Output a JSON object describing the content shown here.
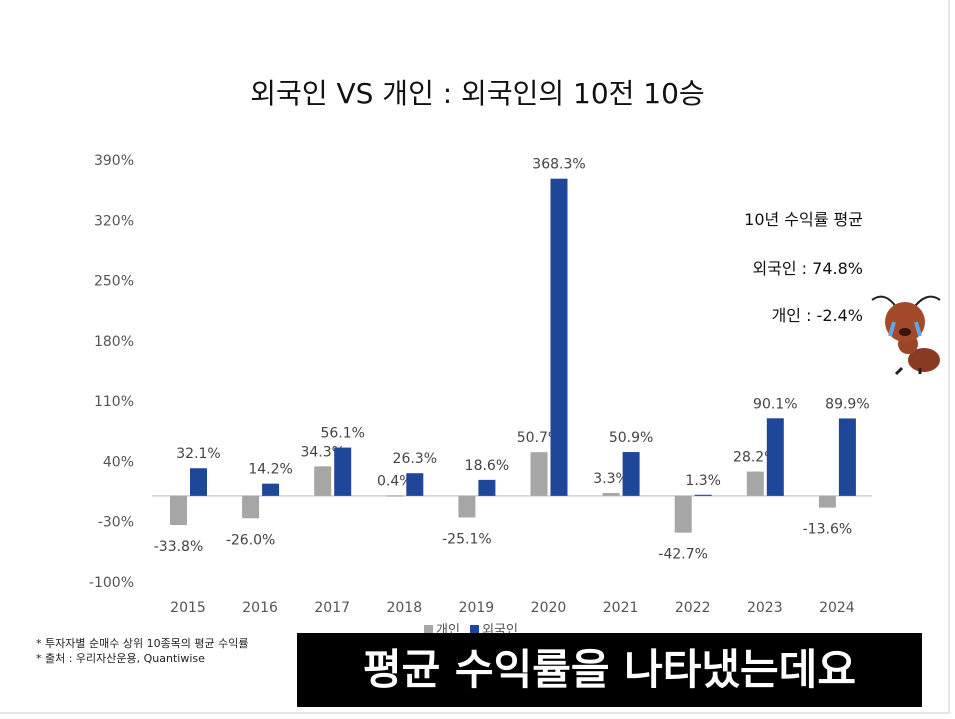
{
  "chart_data": {
    "type": "bar",
    "title": "외국인 VS 개인 : 외국인의 10전 10승",
    "categories": [
      "2015",
      "2016",
      "2017",
      "2018",
      "2019",
      "2020",
      "2021",
      "2022",
      "2023",
      "2024"
    ],
    "series": [
      {
        "name": "개인",
        "color": "#a6a6a6",
        "values": [
          -33.8,
          -26.0,
          34.3,
          0.4,
          -25.1,
          50.7,
          3.3,
          -42.7,
          28.2,
          -13.6
        ],
        "labels": [
          "-33.8%",
          "-26.0%",
          "34.3%",
          "0.4%",
          "-25.1%",
          "50.7%",
          "3.3%",
          "-42.7%",
          "28.2%",
          "-13.6%"
        ]
      },
      {
        "name": "외국인",
        "color": "#1f4799",
        "values": [
          32.1,
          14.2,
          56.1,
          26.3,
          18.6,
          368.3,
          50.9,
          1.3,
          90.1,
          89.9
        ],
        "labels": [
          "32.1%",
          "14.2%",
          "56.1%",
          "26.3%",
          "18.6%",
          "368.3%",
          "50.9%",
          "1.3%",
          "90.1%",
          "89.9%"
        ]
      }
    ],
    "yticks": [
      390,
      320,
      250,
      180,
      110,
      40,
      -30,
      -100
    ],
    "ytick_labels": [
      "390%",
      "320%",
      "250%",
      "180%",
      "110%",
      "40%",
      "-30%",
      "-100%"
    ],
    "ylim": [
      -100,
      390
    ],
    "legend": "bottom"
  },
  "average": {
    "title": "10년 수익률 평균",
    "foreign": "외국인 : 74.8%",
    "individual": "개인 : -2.4%"
  },
  "notes": [
    "* 투자자별 순매수 상위 10종목의 평균 수익률",
    "* 출처 : 우리자산운용, Quantiwise"
  ],
  "caption": "평균 수익률을 나타냈는데요"
}
